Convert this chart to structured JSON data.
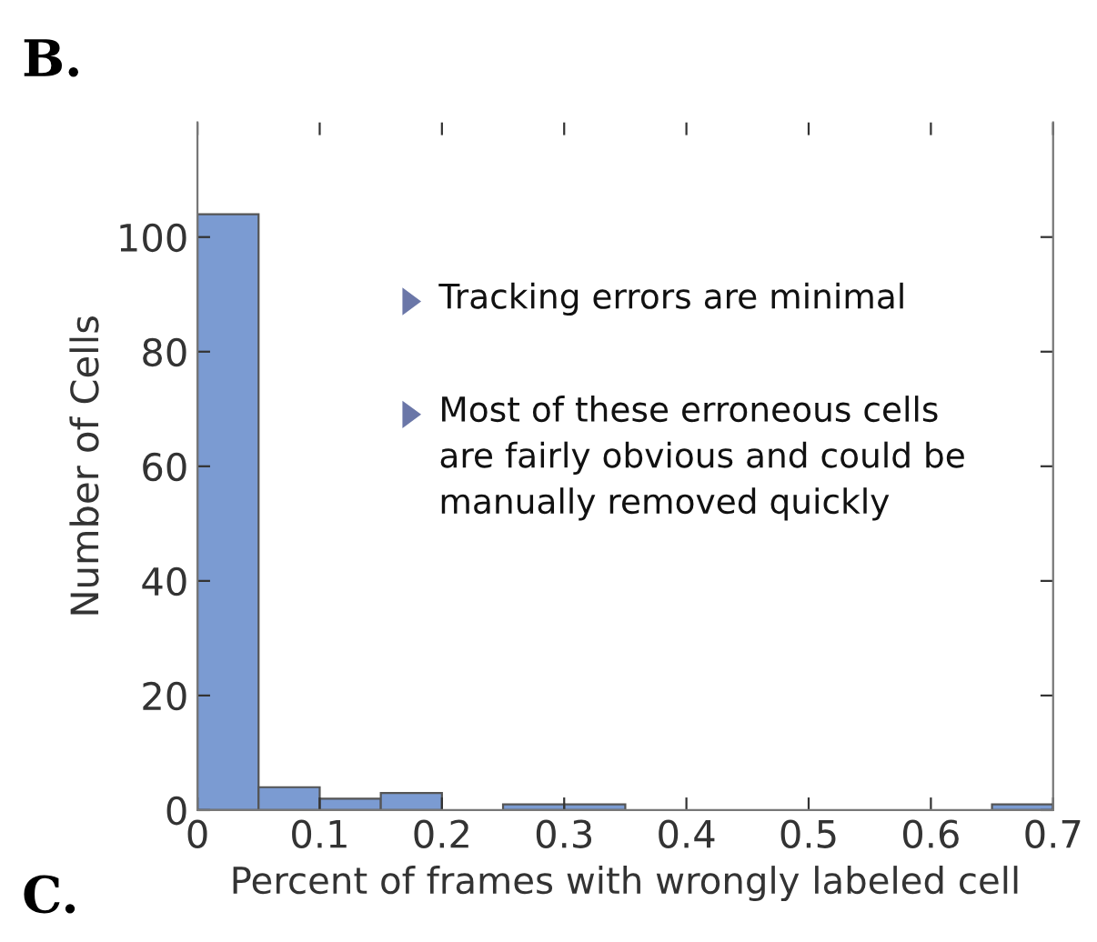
{
  "chart_data": {
    "type": "histogram",
    "title": "B.",
    "xlabel": "Percent of frames with wrongly labeled cell",
    "ylabel": "Number of Cells",
    "bins": [
      0,
      0.05,
      0.1,
      0.15,
      0.2,
      0.25,
      0.3,
      0.35,
      0.4,
      0.45,
      0.5,
      0.55,
      0.6,
      0.65,
      0.7
    ],
    "values": [
      104,
      4,
      2,
      3,
      0,
      1,
      1,
      0,
      0,
      0,
      0,
      0,
      0,
      1
    ],
    "color": "#7b9bd2",
    "xlim": [
      0,
      0.7
    ],
    "xticks": [
      0,
      0.1,
      0.2,
      0.3,
      0.4,
      0.5,
      0.6,
      0.7
    ],
    "ylim": [
      0,
      120
    ],
    "yticks": [
      0,
      20,
      40,
      60,
      80,
      100
    ],
    "grid": false,
    "legend": false,
    "annotations": [
      "Tracking errors are minimal",
      "Most of these erroneous cells\nare fairly obvious and could be\nmanually removed quickly",
      "C."
    ]
  }
}
